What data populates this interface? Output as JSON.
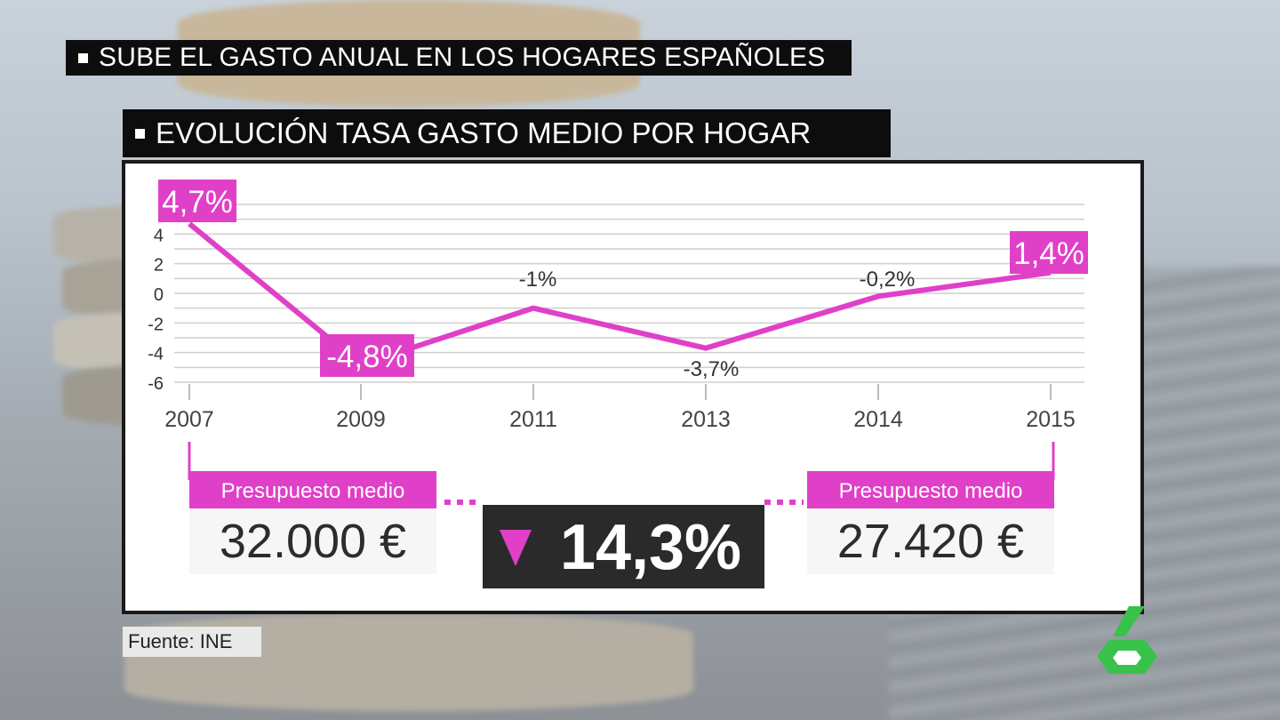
{
  "headline": "SUBE EL GASTO ANUAL EN LOS HOGARES ESPAÑOLES",
  "subheadline": "EVOLUCIÓN TASA GASTO MEDIO POR HOGAR",
  "source": "Fuente: INE",
  "colors": {
    "accent": "#e040c8",
    "dark": "#2a2a2a",
    "grid": "#cfcfcf"
  },
  "chart_data": {
    "type": "line",
    "title": "EVOLUCIÓN TASA GASTO MEDIO POR HOGAR",
    "categories": [
      "2007",
      "2009",
      "2011",
      "2013",
      "2014",
      "2015"
    ],
    "series": [
      {
        "values": [
          4.7,
          -4.8,
          -1,
          -3.7,
          -0.2,
          1.4
        ]
      }
    ],
    "data_labels": [
      "4,7%",
      "-4,8%",
      "-1%",
      "-3,7%",
      "-0,2%",
      "1,4%"
    ],
    "highlighted_labels": [
      0,
      1,
      5
    ],
    "yticks": [
      4,
      2,
      0,
      -2,
      -4,
      -6
    ],
    "ylim": [
      -6,
      6
    ],
    "grid": true,
    "legend": "none"
  },
  "budget": {
    "start": {
      "label": "Presupuesto medio",
      "value": "32.000 €"
    },
    "end": {
      "label": "Presupuesto medio",
      "value": "27.420 €"
    },
    "change": "14,3%",
    "direction": "down-triangle-icon"
  },
  "logo": "laSexta-6-logo"
}
